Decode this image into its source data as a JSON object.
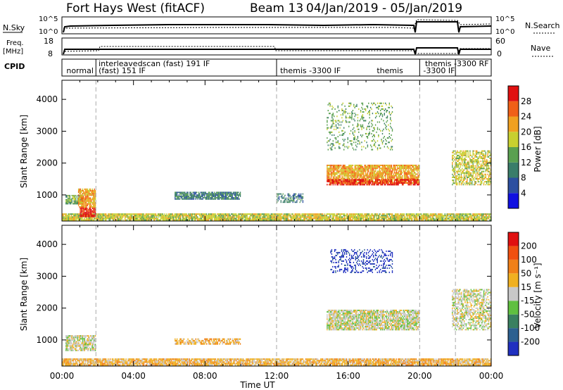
{
  "header": {
    "station": "Fort Hays West (fitACF)",
    "beam": "Beam 13",
    "date_range": "04/Jan/2019 - 05/Jan/2019"
  },
  "top_panels": {
    "nsky_label": "N.Sky",
    "nsearch_label": "N.Search",
    "freq_label_1": "Freq.",
    "freq_label_2": "[MHz]",
    "nave_label": "Nave",
    "cpid_label": "CPID",
    "noise_ticks_left": [
      "10^5",
      "10^0"
    ],
    "noise_ticks_right": [
      "10^5",
      "10^0"
    ],
    "freq_ticks": [
      "18",
      "8"
    ],
    "nave_ticks": [
      "60",
      "0"
    ]
  },
  "cpid": {
    "modes": [
      {
        "label": "normal",
        "start_hour": 0.0,
        "end_hour": 1.9
      },
      {
        "label": "interleavedscan (fast) 191 IF",
        "start_hour": 1.9,
        "end_hour": 12.0
      },
      {
        "label": "(fast) 151 IF",
        "start_hour": 1.9,
        "end_hour": 12.0
      },
      {
        "label": "themis -3300 IF",
        "start_hour": 12.0,
        "end_hour": 20.0
      },
      {
        "label": "themis",
        "start_hour": 17.0,
        "end_hour": 20.0
      },
      {
        "label": "themis -3300 RF",
        "start_hour": 20.0,
        "end_hour": 22.0
      },
      {
        "label": "-3300 IF",
        "start_hour": 20.0,
        "end_hour": 22.0
      },
      {
        "label": "",
        "start_hour": 22.0,
        "end_hour": 24.0
      }
    ],
    "boundaries": [
      1.9,
      12.0,
      20.0,
      22.0
    ]
  },
  "axes": {
    "ylabel": "Slant Range [km]",
    "xlabel": "Time UT",
    "x_ticks": [
      "00:00",
      "04:00",
      "08:00",
      "12:00",
      "16:00",
      "20:00",
      "00:00"
    ],
    "y_ticks": [
      "1000",
      "2000",
      "3000",
      "4000"
    ]
  },
  "colorbars": {
    "power": {
      "label": "Power [dB]",
      "ticks": [
        "4",
        "8",
        "12",
        "16",
        "20",
        "24",
        "28"
      ],
      "colors": [
        "#1010e0",
        "#2c4fa0",
        "#3a7d6a",
        "#5aa050",
        "#c8d030",
        "#f0a020",
        "#f06018",
        "#e01010"
      ]
    },
    "velocity": {
      "label": "Velocity [m s⁻¹]",
      "ticks": [
        "200",
        "100",
        "50",
        "15",
        "-15",
        "-50",
        "-100",
        "-200"
      ],
      "colors": [
        "#2030c0",
        "#2c6090",
        "#3a8060",
        "#60c040",
        "#c8c8c8",
        "#f0b020",
        "#f08018",
        "#f05010",
        "#e01010"
      ]
    }
  },
  "chart_data": {
    "type": "heatmap",
    "title": "Fort Hays West (fitACF)  Beam 13  04/Jan/2019 - 05/Jan/2019",
    "xlabel": "Time UT",
    "ylabel": "Slant Range [km]",
    "xlim_hours": [
      0,
      24
    ],
    "ylim_km": [
      180,
      4600
    ],
    "panels": [
      {
        "name": "Power [dB]",
        "echo_regions": [
          {
            "t0": 0.0,
            "t1": 24.0,
            "r0": 190,
            "r1": 420,
            "level": 4,
            "density": 0.9
          },
          {
            "t0": 0.2,
            "t1": 1.2,
            "r0": 700,
            "r1": 1000,
            "level": 3,
            "density": 0.8
          },
          {
            "t0": 1.0,
            "t1": 1.9,
            "r0": 300,
            "r1": 600,
            "level": 7,
            "density": 0.9
          },
          {
            "t0": 0.9,
            "t1": 1.9,
            "r0": 600,
            "r1": 1200,
            "level": 5,
            "density": 0.9
          },
          {
            "t0": 6.3,
            "t1": 10.0,
            "r0": 850,
            "r1": 1100,
            "level": 2,
            "density": 0.85
          },
          {
            "t0": 12.0,
            "t1": 13.5,
            "r0": 750,
            "r1": 1050,
            "level": 2,
            "density": 0.6
          },
          {
            "t0": 14.8,
            "t1": 20.0,
            "r0": 1350,
            "r1": 1950,
            "level": 5,
            "density": 0.85
          },
          {
            "t0": 14.8,
            "t1": 20.0,
            "r0": 1300,
            "r1": 1500,
            "level": 7,
            "density": 0.7
          },
          {
            "t0": 14.8,
            "t1": 18.5,
            "r0": 2400,
            "r1": 3900,
            "level": 3,
            "density": 0.2
          },
          {
            "t0": 21.8,
            "t1": 24.0,
            "r0": 1300,
            "r1": 2400,
            "level": 4,
            "density": 0.6
          }
        ]
      },
      {
        "name": "Velocity [m s⁻¹]",
        "echo_regions": [
          {
            "t0": 0.0,
            "t1": 24.0,
            "r0": 190,
            "r1": 420,
            "level": 5,
            "density": 0.9
          },
          {
            "t0": 0.2,
            "t1": 1.9,
            "r0": 650,
            "r1": 1150,
            "level": 4,
            "density": 0.8
          },
          {
            "t0": 6.3,
            "t1": 10.0,
            "r0": 850,
            "r1": 1050,
            "level": 5,
            "density": 0.7
          },
          {
            "t0": 14.8,
            "t1": 20.0,
            "r0": 1300,
            "r1": 1950,
            "level": 4,
            "density": 0.85
          },
          {
            "t0": 15.0,
            "t1": 18.5,
            "r0": 3100,
            "r1": 3850,
            "level": 0,
            "density": 0.3
          },
          {
            "t0": 21.8,
            "t1": 24.0,
            "r0": 1300,
            "r1": 2600,
            "level": 4,
            "density": 0.6
          }
        ]
      }
    ]
  }
}
